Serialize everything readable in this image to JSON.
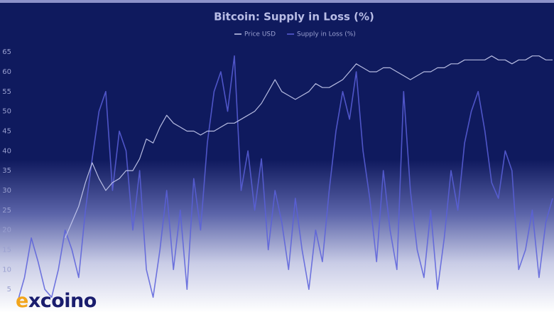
{
  "chart_data": {
    "type": "line",
    "title": "Bitcoin: Supply in Loss (%)",
    "series": [
      {
        "name": "Price USD",
        "color": "#c9cdef",
        "values": [
          null,
          null,
          null,
          null,
          null,
          null,
          null,
          18,
          22,
          26,
          32,
          37,
          33,
          30,
          32,
          33,
          35,
          35,
          38,
          43,
          42,
          46,
          49,
          47,
          46,
          45,
          45,
          44,
          45,
          45,
          46,
          47,
          47,
          48,
          49,
          50,
          52,
          55,
          58,
          55,
          54,
          53,
          54,
          55,
          57,
          56,
          56,
          57,
          58,
          60,
          62,
          61,
          60,
          60,
          61,
          61,
          60,
          59,
          58,
          59,
          60,
          60,
          61,
          61,
          62,
          62,
          63,
          63,
          63,
          63,
          64,
          63,
          63,
          62,
          63,
          63,
          64,
          64,
          63,
          63
        ]
      },
      {
        "name": "Supply in Loss (%)",
        "color": "#5b60da",
        "values": [
          2,
          8,
          18,
          12,
          5,
          3,
          10,
          20,
          15,
          8,
          25,
          38,
          50,
          55,
          30,
          45,
          40,
          20,
          35,
          10,
          3,
          15,
          30,
          10,
          25,
          5,
          33,
          20,
          42,
          55,
          60,
          50,
          64,
          30,
          40,
          25,
          38,
          15,
          30,
          22,
          10,
          28,
          15,
          5,
          20,
          12,
          30,
          45,
          55,
          48,
          60,
          40,
          28,
          12,
          35,
          20,
          10,
          55,
          30,
          15,
          8,
          25,
          5,
          18,
          35,
          25,
          42,
          50,
          55,
          45,
          32,
          28,
          40,
          35,
          10,
          15,
          25,
          8,
          22,
          28
        ]
      }
    ],
    "ylim": [
      0,
      67
    ],
    "yticks": [
      5,
      10,
      15,
      20,
      25,
      30,
      35,
      40,
      45,
      50,
      55,
      60,
      65
    ],
    "grid": false,
    "legend": "top"
  },
  "brand": "excoino"
}
